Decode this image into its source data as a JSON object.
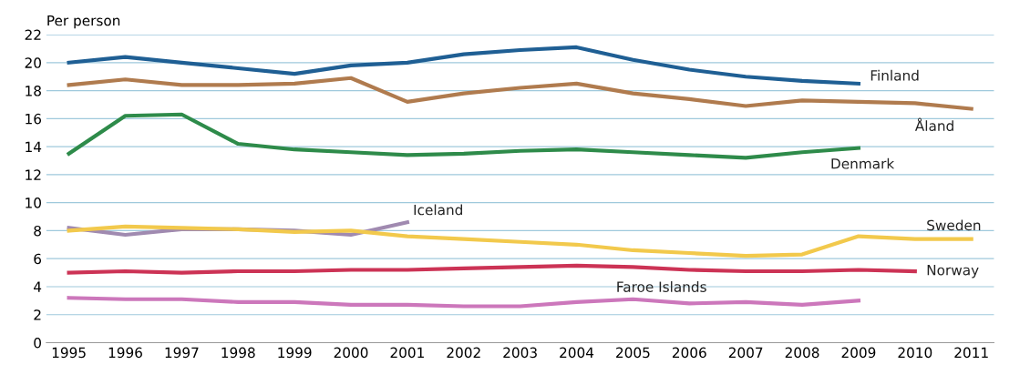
{
  "chart_data": {
    "type": "line",
    "ylabel": "Per person",
    "categories": [
      "1995",
      "1996",
      "1997",
      "1998",
      "1999",
      "2000",
      "2001",
      "2002",
      "2003",
      "2004",
      "2005",
      "2006",
      "2007",
      "2008",
      "2009",
      "2010",
      "2011"
    ],
    "ylim": [
      0,
      22
    ],
    "yticks": [
      0,
      2,
      4,
      6,
      8,
      10,
      12,
      14,
      16,
      18,
      20,
      22
    ],
    "grid": "y",
    "legend": false,
    "marker": "none",
    "line_style": "solid",
    "series": [
      {
        "name": "Finland",
        "color": "#1f5f94",
        "values": [
          20.0,
          20.4,
          20.0,
          19.6,
          19.2,
          19.8,
          20.0,
          20.6,
          20.9,
          21.1,
          20.2,
          19.5,
          19.0,
          18.7,
          18.5,
          null,
          null
        ]
      },
      {
        "name": "Åland",
        "color": "#b07b4e",
        "values": [
          18.4,
          18.8,
          18.4,
          18.4,
          18.5,
          18.9,
          17.2,
          17.8,
          18.2,
          18.5,
          17.8,
          17.4,
          16.9,
          17.3,
          17.2,
          17.1,
          16.7
        ]
      },
      {
        "name": "Denmark",
        "color": "#2e8b4a",
        "values": [
          13.5,
          16.2,
          16.3,
          14.2,
          13.8,
          13.6,
          13.4,
          13.5,
          13.7,
          13.8,
          13.6,
          13.4,
          13.2,
          13.6,
          13.9,
          null,
          null
        ]
      },
      {
        "name": "Iceland",
        "color": "#a08ab0",
        "values": [
          8.2,
          7.7,
          8.1,
          8.1,
          8.0,
          7.7,
          8.6,
          null,
          null,
          null,
          null,
          null,
          null,
          null,
          null,
          null,
          null
        ]
      },
      {
        "name": "Sweden",
        "color": "#f2c94c",
        "values": [
          8.0,
          8.3,
          8.2,
          8.1,
          7.9,
          8.0,
          7.6,
          7.4,
          7.2,
          7.0,
          6.6,
          6.4,
          6.2,
          6.3,
          7.6,
          7.4,
          7.4
        ]
      },
      {
        "name": "Norway",
        "color": "#cc3355",
        "values": [
          5.0,
          5.1,
          5.0,
          5.1,
          5.1,
          5.2,
          5.2,
          5.3,
          5.4,
          5.5,
          5.4,
          5.2,
          5.1,
          5.1,
          5.2,
          5.1,
          null
        ]
      },
      {
        "name": "Faroe Islands",
        "color": "#cc77bb",
        "values": [
          3.2,
          3.1,
          3.1,
          2.9,
          2.9,
          2.7,
          2.7,
          2.6,
          2.6,
          2.9,
          3.1,
          2.8,
          2.9,
          2.7,
          3.0,
          null,
          null
        ]
      }
    ]
  }
}
